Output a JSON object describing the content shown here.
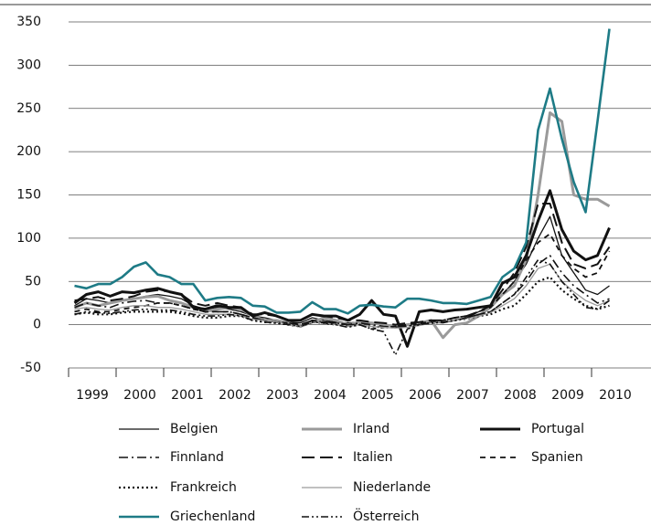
{
  "chart_data": {
    "type": "line",
    "x": [
      1999.125,
      1999.375,
      1999.625,
      1999.875,
      2000.125,
      2000.375,
      2000.625,
      2000.875,
      2001.125,
      2001.375,
      2001.625,
      2001.875,
      2002.125,
      2002.375,
      2002.625,
      2002.875,
      2003.125,
      2003.375,
      2003.625,
      2003.875,
      2004.125,
      2004.375,
      2004.625,
      2004.875,
      2005.125,
      2005.375,
      2005.625,
      2005.875,
      2006.125,
      2006.375,
      2006.625,
      2006.875,
      2007.125,
      2007.375,
      2007.625,
      2007.875,
      2008.125,
      2008.375,
      2008.625,
      2008.875,
      2009.125,
      2009.375,
      2009.625,
      2009.875,
      2010.125,
      2010.375
    ],
    "xlim": [
      1999,
      2011.25
    ],
    "xticks": [
      1999,
      2000,
      2001,
      2002,
      2003,
      2004,
      2005,
      2006,
      2007,
      2008,
      2009,
      2010
    ],
    "ylim": [
      -50,
      350
    ],
    "yticks": [
      -50,
      0,
      50,
      100,
      150,
      200,
      250,
      300,
      350
    ],
    "grid": true,
    "series": [
      {
        "name": "Belgien",
        "color": "#111111",
        "width": 1.3,
        "dash": "solid",
        "values": [
          22,
          30,
          28,
          25,
          28,
          30,
          33,
          35,
          33,
          30,
          22,
          18,
          20,
          18,
          15,
          10,
          8,
          5,
          3,
          2,
          8,
          5,
          3,
          2,
          3,
          2,
          0,
          -2,
          0,
          2,
          3,
          2,
          5,
          8,
          15,
          22,
          35,
          50,
          70,
          100,
          125,
          80,
          60,
          40,
          35,
          45
        ]
      },
      {
        "name": "Irland",
        "color": "#9a9a9a",
        "width": 3,
        "dash": "solid",
        "values": [
          20,
          25,
          22,
          25,
          28,
          30,
          32,
          33,
          28,
          25,
          20,
          15,
          18,
          20,
          18,
          10,
          5,
          5,
          2,
          -2,
          3,
          8,
          5,
          0,
          3,
          2,
          0,
          -2,
          0,
          2,
          5,
          -15,
          0,
          2,
          10,
          20,
          35,
          45,
          75,
          150,
          245,
          235,
          150,
          145,
          145,
          137
        ]
      },
      {
        "name": "Portugal",
        "color": "#111111",
        "width": 3,
        "dash": "solid",
        "values": [
          25,
          35,
          38,
          33,
          38,
          37,
          40,
          42,
          38,
          35,
          20,
          18,
          22,
          20,
          20,
          10,
          14,
          10,
          5,
          5,
          12,
          10,
          10,
          5,
          12,
          28,
          12,
          10,
          -25,
          15,
          17,
          15,
          17,
          18,
          20,
          22,
          48,
          55,
          80,
          120,
          155,
          110,
          85,
          75,
          80,
          112
        ]
      },
      {
        "name": "Finnland",
        "color": "#111111",
        "width": 1.6,
        "dash": "dashdot",
        "values": [
          20,
          25,
          22,
          20,
          25,
          27,
          28,
          25,
          25,
          22,
          18,
          15,
          15,
          15,
          12,
          8,
          5,
          3,
          2,
          0,
          5,
          3,
          2,
          0,
          2,
          0,
          -2,
          -3,
          -2,
          0,
          2,
          3,
          5,
          8,
          12,
          15,
          25,
          35,
          50,
          70,
          80,
          60,
          45,
          35,
          25,
          30
        ]
      },
      {
        "name": "Italien",
        "color": "#111111",
        "width": 2,
        "dash": "dash",
        "values": [
          28,
          30,
          32,
          28,
          30,
          33,
          38,
          40,
          38,
          35,
          25,
          22,
          25,
          22,
          20,
          12,
          12,
          10,
          5,
          5,
          12,
          10,
          8,
          5,
          5,
          3,
          2,
          0,
          2,
          3,
          5,
          5,
          8,
          10,
          15,
          22,
          40,
          60,
          90,
          140,
          140,
          95,
          70,
          65,
          70,
          90
        ]
      },
      {
        "name": "Spanien",
        "color": "#111111",
        "width": 1.8,
        "dash": "shortdash",
        "values": [
          15,
          18,
          15,
          15,
          18,
          20,
          22,
          25,
          25,
          22,
          18,
          15,
          15,
          15,
          12,
          8,
          5,
          3,
          2,
          0,
          5,
          3,
          2,
          0,
          0,
          -5,
          -3,
          -2,
          0,
          2,
          3,
          5,
          8,
          10,
          15,
          20,
          35,
          50,
          75,
          95,
          105,
          80,
          65,
          55,
          60,
          85
        ]
      },
      {
        "name": "Frankreich",
        "color": "#111111",
        "width": 2.2,
        "dash": "dot",
        "values": [
          12,
          14,
          12,
          12,
          14,
          15,
          15,
          15,
          15,
          13,
          10,
          8,
          8,
          10,
          10,
          5,
          3,
          2,
          0,
          -2,
          3,
          2,
          0,
          -2,
          0,
          -2,
          -3,
          -3,
          -2,
          0,
          2,
          3,
          5,
          7,
          10,
          12,
          18,
          22,
          35,
          50,
          55,
          40,
          30,
          22,
          18,
          22
        ]
      },
      {
        "name": "Niederlande",
        "color": "#9a9a9a",
        "width": 1.3,
        "dash": "solid",
        "values": [
          18,
          20,
          18,
          17,
          20,
          22,
          22,
          20,
          20,
          18,
          15,
          12,
          12,
          12,
          10,
          6,
          5,
          3,
          0,
          -2,
          3,
          2,
          0,
          -2,
          0,
          -2,
          -3,
          -4,
          -3,
          -1,
          2,
          3,
          5,
          7,
          10,
          14,
          22,
          30,
          45,
          65,
          70,
          50,
          38,
          28,
          22,
          28
        ]
      },
      {
        "name": "Griechenland",
        "color": "#1e7b86",
        "width": 2.6,
        "dash": "solid",
        "values": [
          45,
          42,
          47,
          47,
          55,
          67,
          72,
          58,
          55,
          47,
          47,
          28,
          31,
          32,
          31,
          22,
          21,
          14,
          14,
          15,
          26,
          18,
          18,
          13,
          22,
          23,
          21,
          20,
          30,
          30,
          28,
          25,
          25,
          24,
          28,
          32,
          55,
          65,
          95,
          225,
          273,
          215,
          165,
          130,
          235,
          342
        ]
      },
      {
        "name": "Österreich",
        "color": "#111111",
        "width": 1.6,
        "dash": "dashdotdot",
        "values": [
          12,
          15,
          14,
          13,
          15,
          17,
          18,
          17,
          17,
          15,
          12,
          10,
          10,
          12,
          10,
          5,
          3,
          2,
          0,
          -2,
          3,
          2,
          0,
          -3,
          0,
          -5,
          -8,
          -35,
          -5,
          0,
          2,
          3,
          5,
          8,
          12,
          15,
          25,
          35,
          55,
          75,
          70,
          50,
          35,
          20,
          18,
          28
        ]
      }
    ]
  }
}
